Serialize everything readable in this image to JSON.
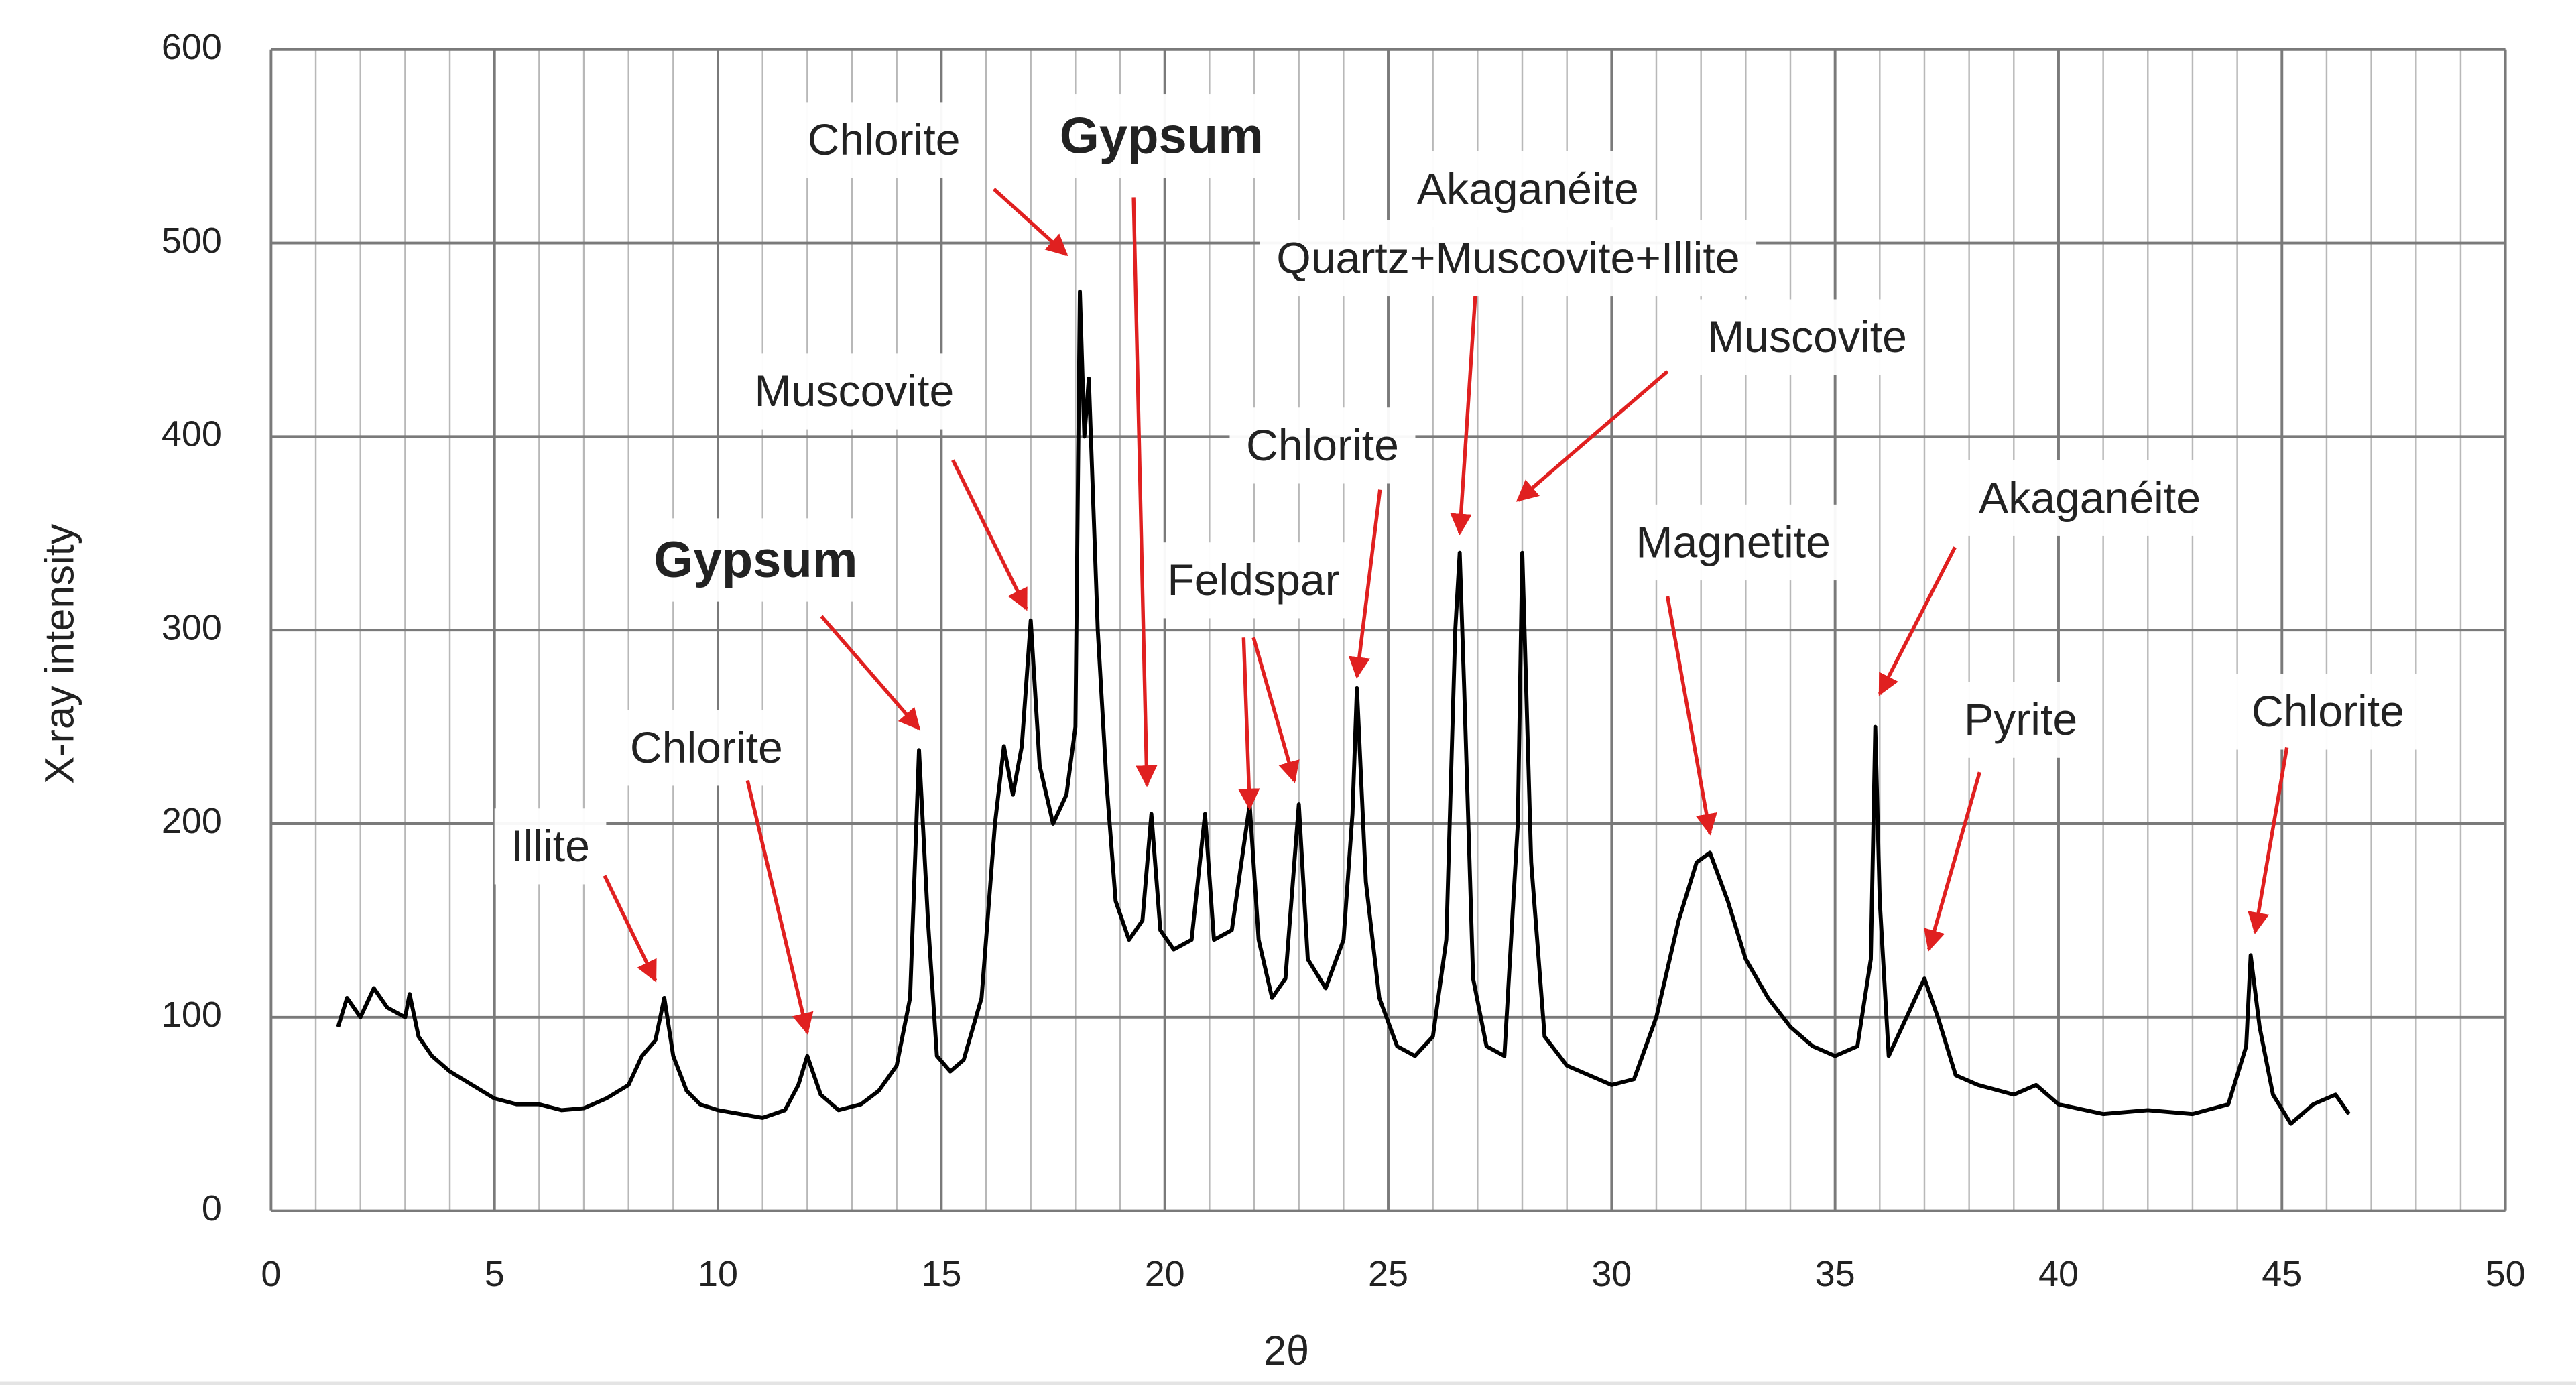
{
  "chart_data": {
    "type": "line",
    "xlabel": "2θ",
    "ylabel": "X-ray intensity",
    "xlim": [
      0,
      50
    ],
    "ylim": [
      0,
      600
    ],
    "xticks": [
      0,
      5,
      10,
      15,
      20,
      25,
      30,
      35,
      40,
      45,
      50
    ],
    "yticks": [
      0,
      100,
      200,
      300,
      400,
      500,
      600
    ],
    "grid": true,
    "x_minor_grid_step": 1,
    "color": "#000000",
    "annotation_color": "#e02020",
    "x": [
      1.5,
      1.7,
      2.0,
      2.3,
      2.6,
      3.0,
      3.1,
      3.3,
      3.6,
      4.0,
      4.5,
      5.0,
      5.5,
      6.0,
      6.5,
      7.0,
      7.5,
      8.0,
      8.3,
      8.6,
      8.8,
      9.0,
      9.3,
      9.6,
      10.0,
      10.5,
      11.0,
      11.5,
      11.8,
      12.0,
      12.3,
      12.7,
      13.2,
      13.6,
      14.0,
      14.3,
      14.5,
      14.7,
      14.9,
      15.2,
      15.5,
      15.9,
      16.2,
      16.4,
      16.6,
      16.8,
      17.0,
      17.2,
      17.5,
      17.8,
      18.0,
      18.1,
      18.2,
      18.3,
      18.5,
      18.7,
      18.9,
      19.2,
      19.5,
      19.7,
      19.9,
      20.2,
      20.6,
      20.9,
      21.1,
      21.5,
      21.9,
      22.1,
      22.4,
      22.7,
      23.0,
      23.2,
      23.6,
      24.0,
      24.2,
      24.3,
      24.5,
      24.8,
      25.2,
      25.6,
      26.0,
      26.3,
      26.5,
      26.6,
      26.7,
      26.9,
      27.2,
      27.6,
      27.9,
      28.0,
      28.2,
      28.5,
      29.0,
      29.5,
      30.0,
      30.5,
      31.0,
      31.5,
      31.9,
      32.2,
      32.6,
      33.0,
      33.5,
      34.0,
      34.5,
      35.0,
      35.5,
      35.8,
      35.9,
      36.0,
      36.2,
      36.6,
      37.0,
      37.3,
      37.7,
      38.2,
      39.0,
      39.5,
      40.0,
      41.0,
      42.0,
      43.0,
      43.8,
      44.2,
      44.3,
      44.5,
      44.8,
      45.2,
      45.7,
      46.2,
      46.5
    ],
    "values": [
      95,
      110,
      100,
      115,
      105,
      100,
      112,
      90,
      80,
      72,
      65,
      58,
      55,
      55,
      52,
      53,
      58,
      65,
      80,
      88,
      110,
      80,
      62,
      55,
      52,
      50,
      48,
      52,
      65,
      80,
      60,
      52,
      55,
      62,
      75,
      110,
      238,
      150,
      80,
      72,
      78,
      110,
      200,
      240,
      215,
      240,
      305,
      230,
      200,
      215,
      250,
      475,
      400,
      430,
      300,
      220,
      160,
      140,
      150,
      205,
      145,
      135,
      140,
      205,
      140,
      145,
      210,
      140,
      110,
      120,
      210,
      130,
      115,
      140,
      205,
      270,
      170,
      110,
      85,
      80,
      90,
      140,
      300,
      340,
      270,
      120,
      85,
      80,
      200,
      340,
      180,
      90,
      75,
      70,
      65,
      68,
      100,
      150,
      180,
      185,
      160,
      130,
      110,
      95,
      85,
      80,
      85,
      130,
      250,
      160,
      80,
      100,
      120,
      100,
      70,
      65,
      60,
      65,
      55,
      50,
      52,
      50,
      55,
      85,
      132,
      95,
      60,
      45,
      55,
      60,
      50
    ],
    "annotations": [
      {
        "text": "Illite",
        "targets": [
          {
            "x": 8.6,
            "y": 119
          }
        ]
      },
      {
        "text": "Chlorite",
        "targets": [
          {
            "x": 12.0,
            "y": 92
          }
        ]
      },
      {
        "text": "Gypsum",
        "bold": true,
        "targets": [
          {
            "x": 14.5,
            "y": 249
          }
        ]
      },
      {
        "text": "Muscovite",
        "targets": [
          {
            "x": 16.9,
            "y": 311
          }
        ]
      },
      {
        "text": "Chlorite",
        "targets": [
          {
            "x": 17.8,
            "y": 494
          }
        ]
      },
      {
        "text": "Gypsum",
        "bold": true,
        "targets": [
          {
            "x": 19.6,
            "y": 220
          }
        ]
      },
      {
        "text": "Feldspar",
        "targets": [
          {
            "x": 21.9,
            "y": 208
          },
          {
            "x": 22.9,
            "y": 222
          }
        ]
      },
      {
        "text": "Chlorite",
        "targets": [
          {
            "x": 24.3,
            "y": 276
          }
        ]
      },
      {
        "text": "Akaganéite"
      },
      {
        "text": "Quartz+Muscovite+Illite",
        "targets": [
          {
            "x": 26.6,
            "y": 350
          }
        ]
      },
      {
        "text": "Muscovite",
        "targets": [
          {
            "x": 27.9,
            "y": 367
          }
        ]
      },
      {
        "text": "Magnetite",
        "targets": [
          {
            "x": 32.2,
            "y": 195
          }
        ]
      },
      {
        "text": "Akaganéite",
        "targets": [
          {
            "x": 36.0,
            "y": 267
          }
        ]
      },
      {
        "text": "Pyrite",
        "targets": [
          {
            "x": 37.1,
            "y": 135
          }
        ]
      },
      {
        "text": "Chlorite",
        "targets": [
          {
            "x": 44.4,
            "y": 144
          }
        ]
      }
    ]
  }
}
